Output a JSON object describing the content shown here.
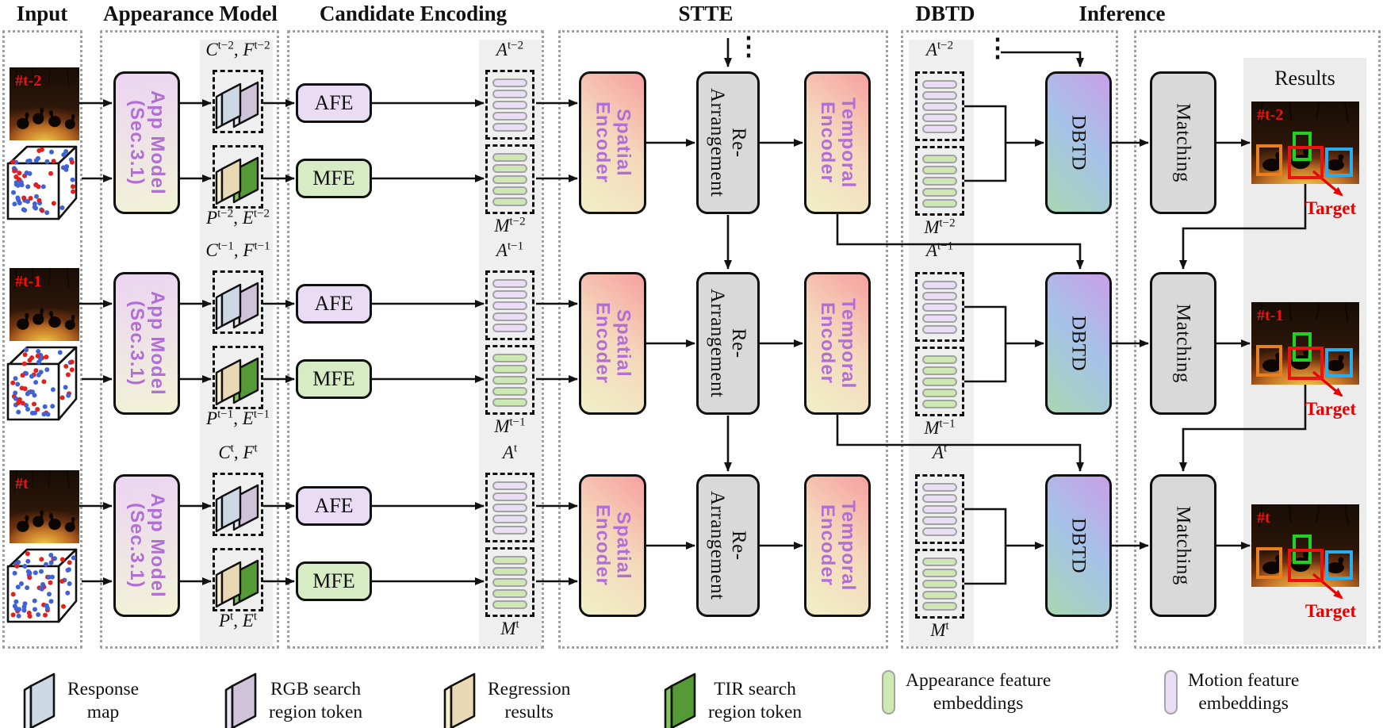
{
  "headers": {
    "input": "Input",
    "appearance": "Appearance Model",
    "candidate": "Candidate Encoding",
    "stte": "STTE",
    "dbtd": "DBTD",
    "inference": "Inference"
  },
  "blocks": {
    "app_model_line1": "App Model",
    "app_model_line2": "(Sec.3.1)",
    "afe": "AFE",
    "mfe": "MFE",
    "spatial_line1": "Spatial",
    "spatial_line2": "Encoder",
    "rearrange_line1": "Re-",
    "rearrange_line2": "Arrangement",
    "temporal_line1": "Temporal",
    "temporal_line2": "Encoder",
    "dbtd": "DBTD",
    "matching": "Matching",
    "results_title": "Results",
    "target": "Target",
    "ellipsis": "⋮",
    "comma": ", "
  },
  "rows": [
    {
      "frame": "#t-2",
      "cf_b1": "C",
      "cf_s1": "t−2",
      "cf_b2": "F",
      "cf_s2": "t−2",
      "pe_b1": "P",
      "pe_s1": "t−2",
      "pe_b2": "E",
      "pe_s2": "t−2",
      "a_base": "A",
      "a_sup": "t−2",
      "m_base": "M",
      "m_sup": "t−2"
    },
    {
      "frame": "#t-1",
      "cf_b1": "C",
      "cf_s1": "t−1",
      "cf_b2": "F",
      "cf_s2": "t−1",
      "pe_b1": "P",
      "pe_s1": "t−1",
      "pe_b2": "E",
      "pe_s2": "t−1",
      "a_base": "A",
      "a_sup": "t−1",
      "m_base": "M",
      "m_sup": "t−1"
    },
    {
      "frame": "#t",
      "cf_b1": "C",
      "cf_s1": "t",
      "cf_b2": "F",
      "cf_s2": "t",
      "pe_b1": "P",
      "pe_s1": "t",
      "pe_b2": "E",
      "pe_s2": "t",
      "a_base": "A",
      "a_sup": "t",
      "m_base": "M",
      "m_sup": "t"
    }
  ],
  "legend": [
    {
      "icon": "response-map-icon",
      "shape": "card",
      "face": "#ccd9e4",
      "side": "#e9eff5",
      "label1": "Response",
      "label2": "map"
    },
    {
      "icon": "rgb-search-token-icon",
      "shape": "card",
      "face": "#cfc3da",
      "side": "#eae3f1",
      "label1": "RGB search",
      "label2": "region token"
    },
    {
      "icon": "regression-results-icon",
      "shape": "card",
      "face": "#e8d9b4",
      "side": "#f6eed2",
      "label1": "Regression",
      "label2": "results"
    },
    {
      "icon": "tir-search-token-icon",
      "shape": "card",
      "face": "#569a38",
      "side": "#82c35e",
      "label1": "TIR search",
      "label2": "region token"
    },
    {
      "icon": "appearance-embedding-icon",
      "shape": "pill",
      "face": "#cde8b3",
      "side": "#cde8b3",
      "label1": "Appearance feature",
      "label2": "embeddings"
    },
    {
      "icon": "motion-embedding-icon",
      "shape": "pill",
      "face": "#e9def6",
      "side": "#e9def6",
      "label1": "Motion feature",
      "label2": "embeddings"
    }
  ],
  "colors": {
    "accent_text": "#b06fd4",
    "frame_label_red": "#ee1111",
    "target_red": "#e80000",
    "box_border": "#111111",
    "gray_box": "#d9d9d9",
    "afe_fill": "#eadcf5",
    "mfe_fill": "#d7ebc5",
    "pill_motion": "#e9def6",
    "pill_appearance": "#cde8b3",
    "app_gradient": [
      "#ecd4f2",
      "#f2f3d6"
    ],
    "encoder_gradient": [
      "#f7a0a0",
      "#f5d8bc",
      "#f0f0c8"
    ],
    "dbtd_gradient": [
      "#c99fe8",
      "#a6c2e8",
      "#a8d6b2"
    ],
    "result_boxes": {
      "orange": "#e8801e",
      "green": "#1ed31e",
      "red": "#ee1111",
      "blue": "#28aef0"
    },
    "cards": {
      "response": {
        "face": "#ccd9e4",
        "side": "#e9eff5"
      },
      "rgb": {
        "face": "#cfc3da",
        "side": "#eae3f1"
      },
      "regression": {
        "face": "#e8d9b4",
        "side": "#f6eed2"
      },
      "tir": {
        "face": "#569a38",
        "side": "#82c35e"
      }
    }
  }
}
